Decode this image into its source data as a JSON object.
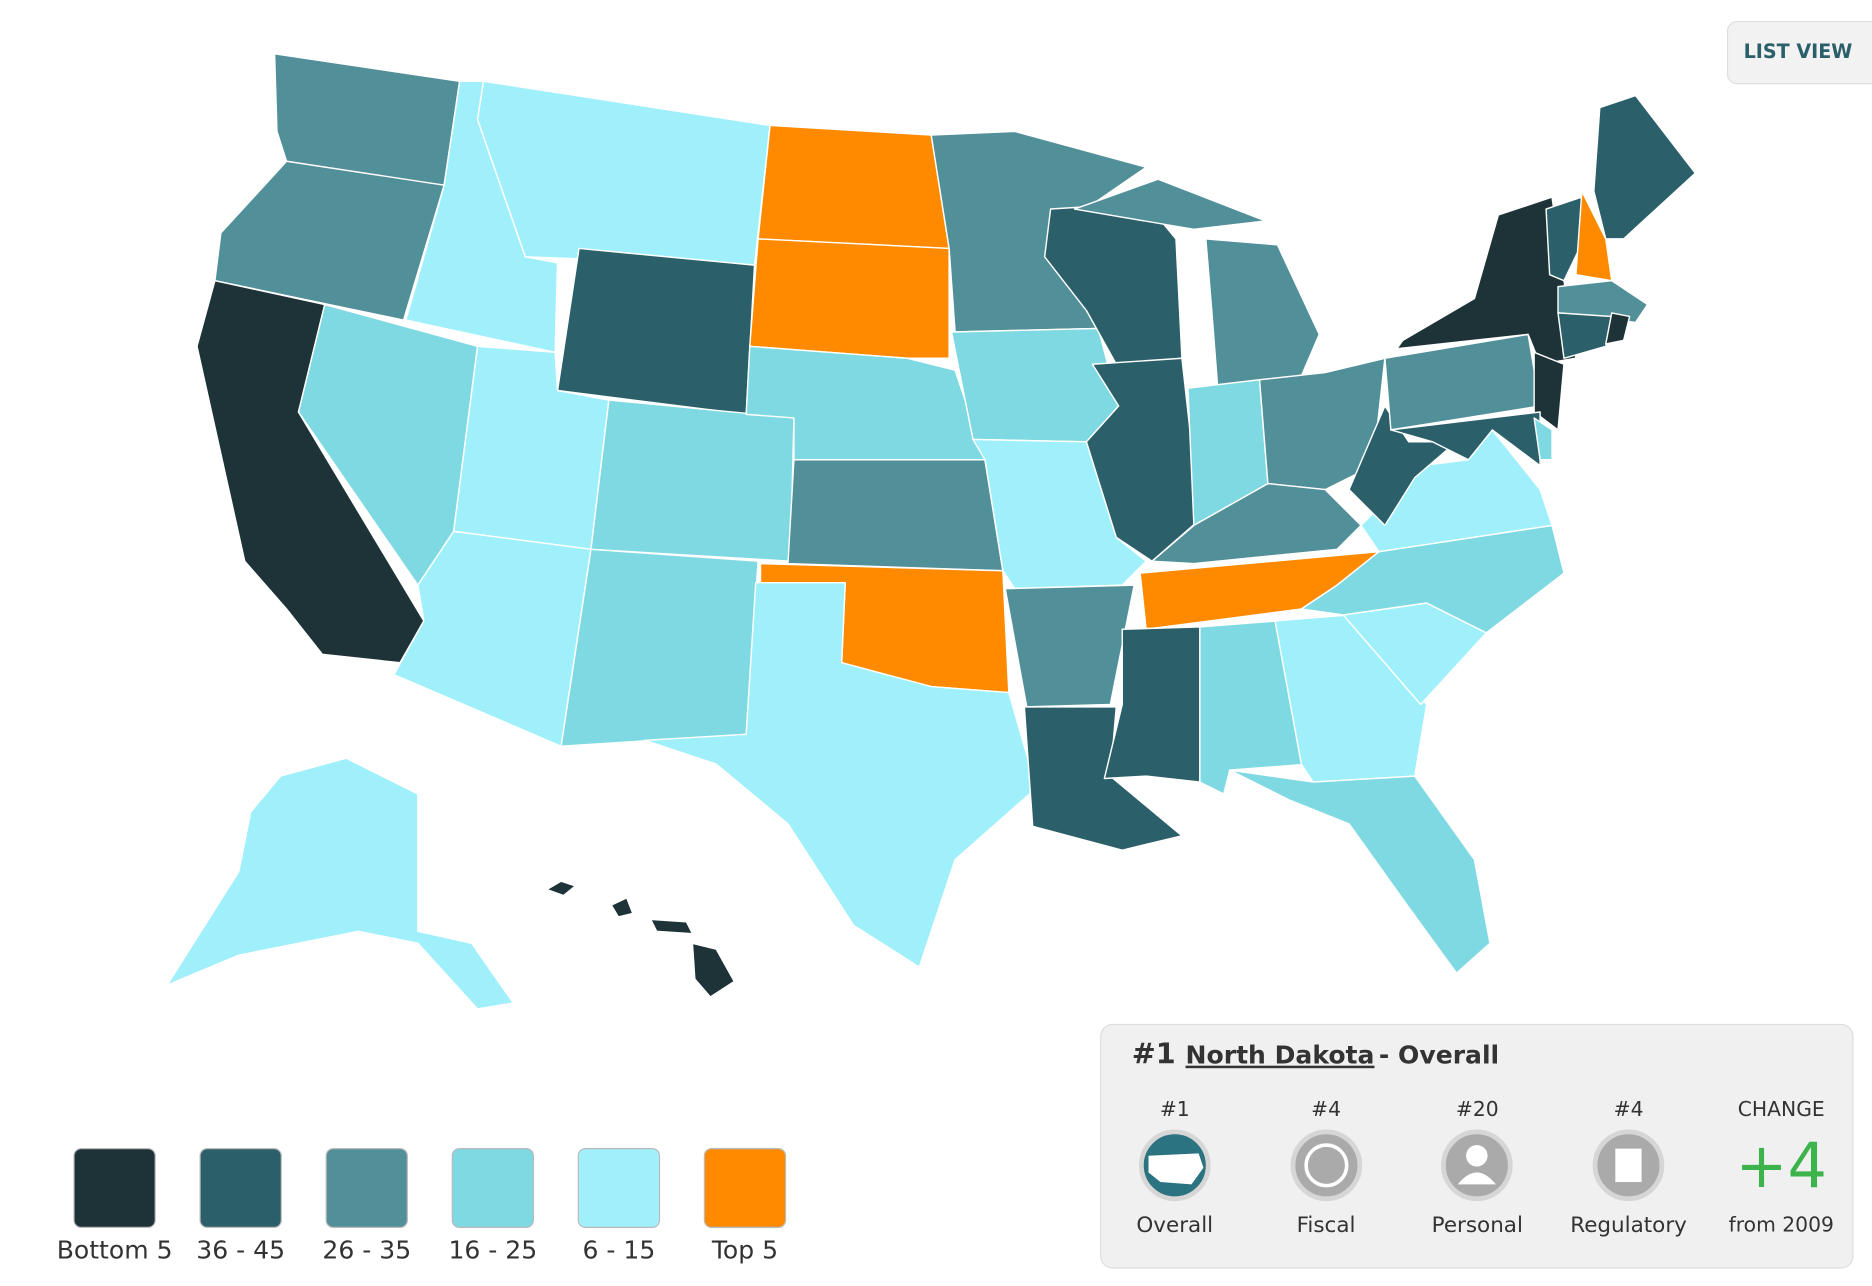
{
  "button": "LIST VIEW",
  "legend": [
    {
      "label": "Bottom 5",
      "color": "#1e3337"
    },
    {
      "label": "36 - 45",
      "color": "#2b5f69"
    },
    {
      "label": "26 - 35",
      "color": "#518f99"
    },
    {
      "label": "16 - 25",
      "color": "#7fd9e2"
    },
    {
      "label": "6 - 15",
      "color": "#a0f0fc"
    },
    {
      "label": "Top 5",
      "color": "#ff8a00"
    }
  ],
  "panel": {
    "rank": "#1",
    "state": "North Dakota",
    "suffix": "- Overall",
    "items": [
      {
        "rank": "#1",
        "label": "Overall"
      },
      {
        "rank": "#4",
        "label": "Fiscal"
      },
      {
        "rank": "#20",
        "label": "Personal"
      },
      {
        "rank": "#4",
        "label": "Regulatory"
      }
    ],
    "change": {
      "heading": "CHANGE",
      "value": "+4",
      "label": "from 2009"
    }
  }
}
